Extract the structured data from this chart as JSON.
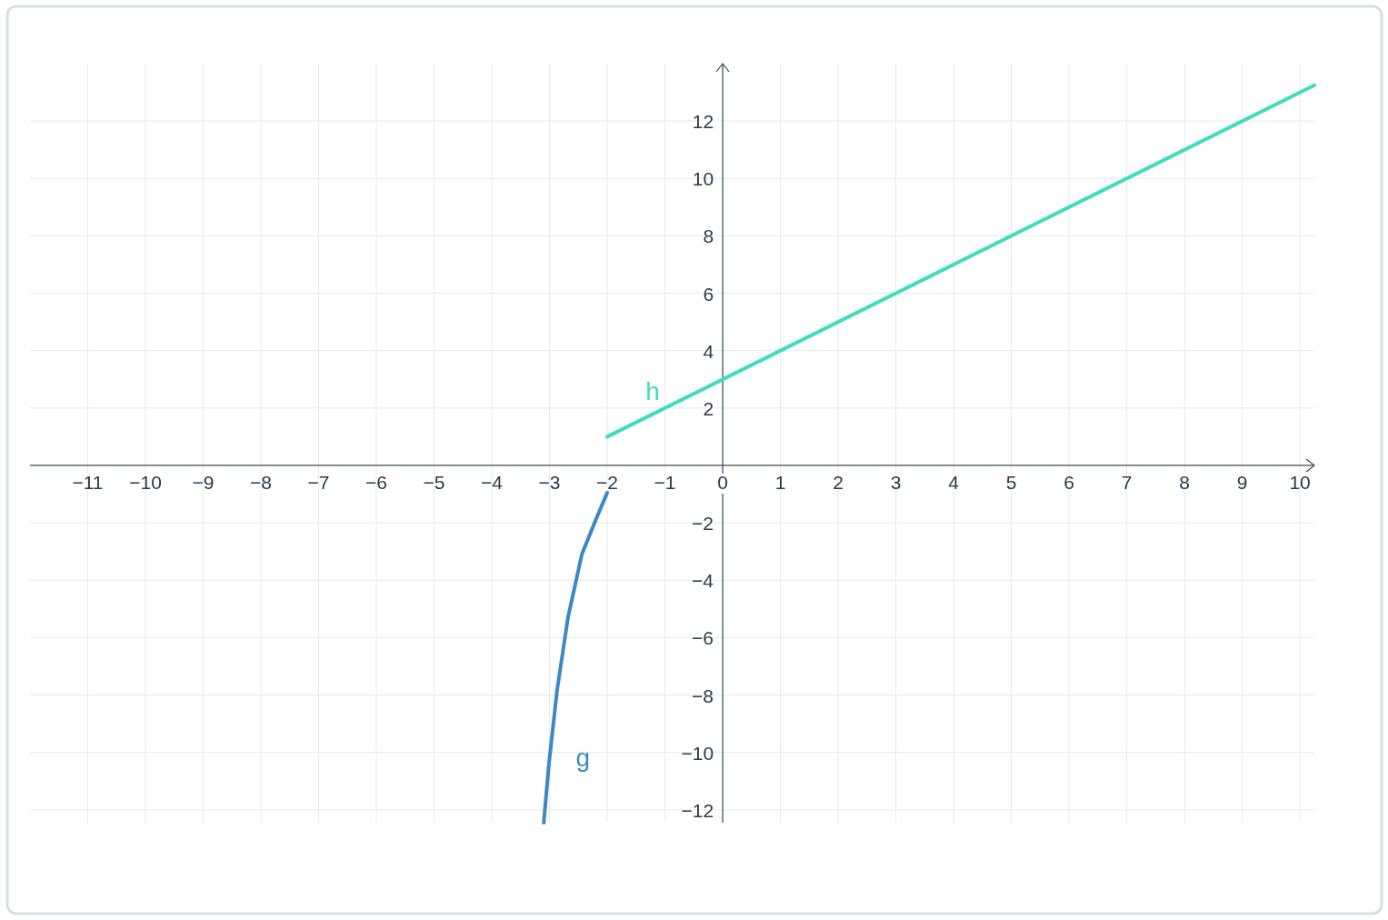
{
  "chart_data": {
    "type": "line",
    "xlim": [
      -12,
      10.25
    ],
    "ylim": [
      -12.45,
      14
    ],
    "xticks": [
      {
        "value": -11,
        "label": "−11"
      },
      {
        "value": -10,
        "label": "−10"
      },
      {
        "value": -9,
        "label": "−9"
      },
      {
        "value": -8,
        "label": "−8"
      },
      {
        "value": -7,
        "label": "−7"
      },
      {
        "value": -6,
        "label": "−6"
      },
      {
        "value": -5,
        "label": "−5"
      },
      {
        "value": -4,
        "label": "−4"
      },
      {
        "value": -3,
        "label": "−3"
      },
      {
        "value": -2,
        "label": "−2"
      },
      {
        "value": -1,
        "label": "−1"
      },
      0,
      1,
      2,
      3,
      4,
      5,
      6,
      7,
      8,
      9,
      10
    ],
    "yticks": [
      {
        "value": -12,
        "label": "−12"
      },
      {
        "value": -10,
        "label": "−10"
      },
      {
        "value": -8,
        "label": "−8"
      },
      {
        "value": -6,
        "label": "−6"
      },
      {
        "value": -4,
        "label": "−4"
      },
      {
        "value": -2,
        "label": "−2"
      },
      2,
      4,
      6,
      8,
      10,
      12
    ],
    "grid": true,
    "marker": "none",
    "line_style": "solid",
    "series": [
      {
        "name": "h",
        "color": "#3fdcbf",
        "x": [
          -2,
          10.25
        ],
        "values": [
          1,
          13.25
        ]
      },
      {
        "name": "g",
        "color": "#3b88c4",
        "x": [
          -2,
          -2.2,
          -2.44,
          -2.68,
          -2.87,
          -3.01,
          -3.1
        ],
        "values": [
          -0.95,
          -1.9,
          -3.1,
          -5.3,
          -7.85,
          -10.4,
          -12.45
        ]
      }
    ]
  }
}
